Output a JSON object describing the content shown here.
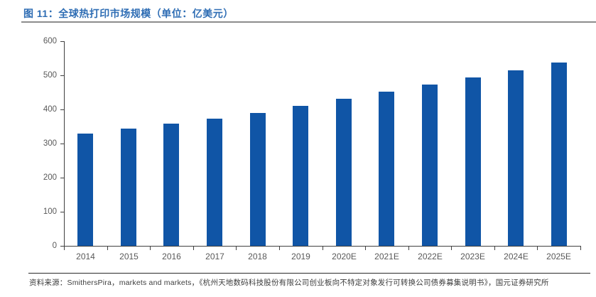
{
  "page": {
    "title": "图 11：全球热打印市场规模（单位：亿美元）",
    "source": "资料来源：SmithersPira，markets and markets，《杭州天地数码科技股份有限公司创业板向不特定对象发行可转换公司债券募集说明书》，国元证券研究所"
  },
  "colors": {
    "bar": "#1055a6",
    "title": "#2e6db4",
    "title_rule": "#8c8c8c",
    "axis": "#404040",
    "tick_label": "#595959",
    "source_text": "#3d3d3d",
    "source_rule": "#2b2b2b",
    "background": "#ffffff"
  },
  "chart_data": {
    "type": "bar",
    "title": "全球热打印市场规模",
    "unit": "亿美元",
    "categories": [
      "2014",
      "2015",
      "2016",
      "2017",
      "2018",
      "2019",
      "2020E",
      "2021E",
      "2022E",
      "2023E",
      "2024E",
      "2025E"
    ],
    "values": [
      329,
      343,
      358,
      373,
      389,
      410,
      432,
      452,
      472,
      493,
      514,
      537
    ],
    "xlabel": "",
    "ylabel": "",
    "ylim": [
      0,
      600
    ],
    "ytick_step": 100,
    "ytick_labels": [
      "0",
      "100",
      "200",
      "300",
      "400",
      "500",
      "600"
    ],
    "grid": false,
    "legend": false,
    "bar_color": "#1055a6"
  }
}
